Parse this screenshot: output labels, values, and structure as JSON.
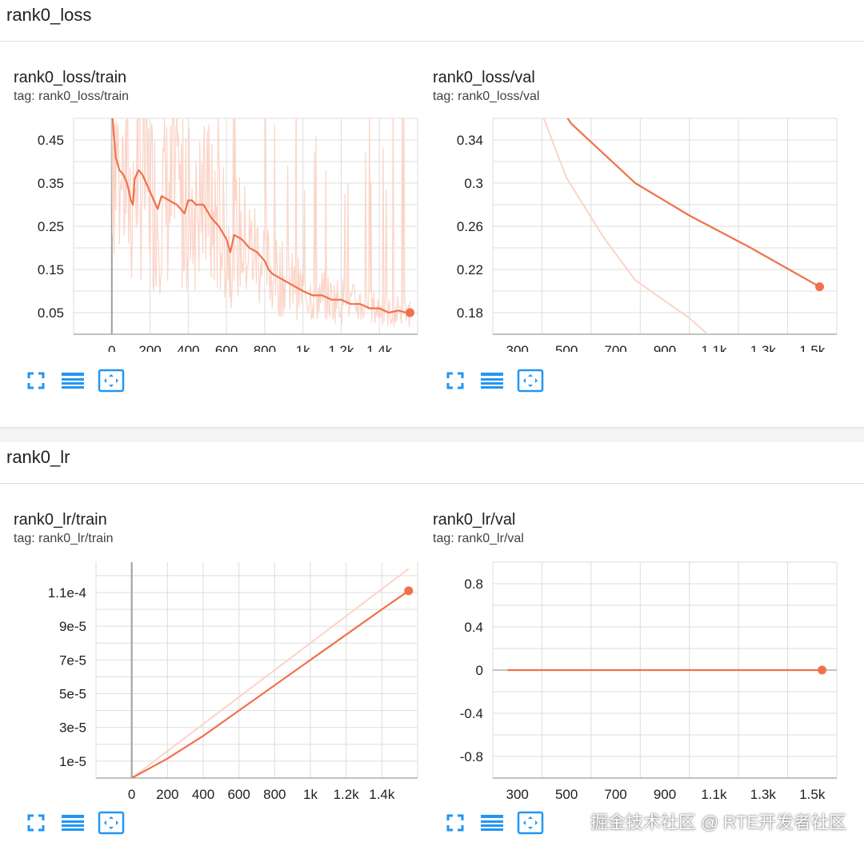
{
  "sections": [
    {
      "title": "rank0_loss"
    },
    {
      "title": "rank0_lr"
    }
  ],
  "colors": {
    "line": "#f0714a",
    "raw": "#fbd4c7",
    "grid": "#dddddd",
    "axis": "#9e9e9e",
    "toolbar": "#2196f3"
  },
  "toolbar_icons": [
    "expand-icon",
    "data-table-icon",
    "fit-domain-icon"
  ],
  "watermark": "掘金技术社区 @ RTE开发者社区",
  "chart_data": [
    {
      "type": "line",
      "title": "rank0_loss/train",
      "tag_label": "tag: rank0_loss/train",
      "xticks": [
        0,
        200,
        400,
        600,
        800,
        1000,
        1200,
        1400
      ],
      "xtick_labels": [
        "0",
        "200",
        "400",
        "600",
        "800",
        "1k",
        "1.2k",
        "1.4k"
      ],
      "yticks": [
        0.05,
        0.15,
        0.25,
        0.35,
        0.45
      ],
      "ytick_labels": [
        "0.05",
        "0.15",
        "0.25",
        "0.35",
        "0.45"
      ],
      "xlim": [
        -200,
        1600
      ],
      "ylim": [
        0.0,
        0.5
      ],
      "grid": true,
      "series": [
        {
          "x": [
            0,
            20,
            40,
            60,
            80,
            100,
            110,
            120,
            140,
            160,
            180,
            200,
            240,
            260,
            300,
            340,
            380,
            400,
            420,
            440,
            480,
            520,
            560,
            600,
            620,
            640,
            680,
            720,
            760,
            800,
            820,
            840,
            880,
            920,
            960,
            1000,
            1050,
            1100,
            1150,
            1200,
            1250,
            1300,
            1350,
            1400,
            1450,
            1500,
            1540,
            1560
          ],
          "y": [
            0.52,
            0.41,
            0.38,
            0.37,
            0.35,
            0.31,
            0.3,
            0.36,
            0.38,
            0.37,
            0.35,
            0.33,
            0.29,
            0.32,
            0.31,
            0.3,
            0.28,
            0.31,
            0.31,
            0.3,
            0.3,
            0.27,
            0.25,
            0.22,
            0.19,
            0.23,
            0.22,
            0.2,
            0.19,
            0.17,
            0.15,
            0.14,
            0.13,
            0.12,
            0.11,
            0.1,
            0.09,
            0.09,
            0.08,
            0.08,
            0.07,
            0.07,
            0.06,
            0.06,
            0.05,
            0.055,
            0.05,
            0.05
          ]
        }
      ]
    },
    {
      "type": "line",
      "title": "rank0_loss/val",
      "tag_label": "tag: rank0_loss/val",
      "xticks": [
        300,
        500,
        700,
        900,
        1100,
        1300,
        1500
      ],
      "xtick_labels": [
        "300",
        "500",
        "700",
        "900",
        "1.1k",
        "1.3k",
        "1.5k"
      ],
      "yticks": [
        0.18,
        0.22,
        0.26,
        0.3,
        0.34
      ],
      "ytick_labels": [
        "0.18",
        "0.22",
        "0.26",
        "0.3",
        "0.34"
      ],
      "xlim": [
        200,
        1600
      ],
      "ylim": [
        0.16,
        0.36
      ],
      "grid": true,
      "series": [
        {
          "x": [
            380,
            520,
            780,
            1000,
            1250,
            1530
          ],
          "y": [
            0.4,
            0.355,
            0.3,
            0.27,
            0.24,
            0.204
          ]
        }
      ],
      "raw": {
        "x": [
          340,
          500,
          650,
          780,
          1000,
          1100
        ],
        "y": [
          0.4,
          0.305,
          0.25,
          0.21,
          0.175,
          0.155
        ]
      }
    },
    {
      "type": "line",
      "title": "rank0_lr/train",
      "tag_label": "tag: rank0_lr/train",
      "xticks": [
        0,
        200,
        400,
        600,
        800,
        1000,
        1200,
        1400
      ],
      "xtick_labels": [
        "0",
        "200",
        "400",
        "600",
        "800",
        "1k",
        "1.2k",
        "1.4k"
      ],
      "yticks": [
        1e-05,
        3e-05,
        5e-05,
        7e-05,
        9e-05,
        0.00011
      ],
      "ytick_labels": [
        "1e-5",
        "3e-5",
        "5e-5",
        "7e-5",
        "9e-5",
        "1.1e-4"
      ],
      "xlim": [
        -200,
        1600
      ],
      "ylim": [
        0,
        0.000128
      ],
      "grid": true,
      "series": [
        {
          "x": [
            0,
            200,
            400,
            600,
            800,
            1000,
            1200,
            1400,
            1550
          ],
          "y": [
            0,
            1.15e-05,
            2.5e-05,
            4e-05,
            5.5e-05,
            7e-05,
            8.5e-05,
            0.0001,
            0.000111
          ]
        }
      ],
      "raw": {
        "x": [
          0,
          1550
        ],
        "y": [
          0,
          0.000124
        ]
      }
    },
    {
      "type": "line",
      "title": "rank0_lr/val",
      "tag_label": "tag: rank0_lr/val",
      "xticks": [
        300,
        500,
        700,
        900,
        1100,
        1300,
        1500
      ],
      "xtick_labels": [
        "300",
        "500",
        "700",
        "900",
        "1.1k",
        "1.3k",
        "1.5k"
      ],
      "yticks": [
        -0.8,
        -0.4,
        0,
        0.4,
        0.8
      ],
      "ytick_labels": [
        "-0.8",
        "-0.4",
        "0",
        "0.4",
        "0.8"
      ],
      "xlim": [
        200,
        1600
      ],
      "ylim": [
        -1.0,
        1.0
      ],
      "grid": true,
      "series": [
        {
          "x": [
            260,
            1540
          ],
          "y": [
            0,
            0
          ]
        }
      ]
    }
  ]
}
